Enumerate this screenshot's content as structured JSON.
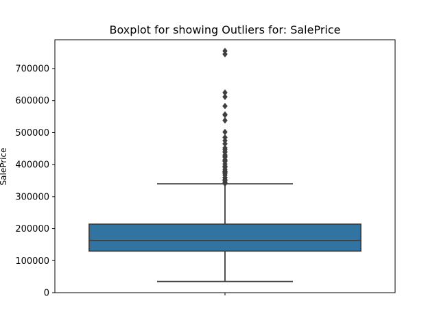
{
  "chart_data": {
    "type": "box",
    "title": "Boxplot for showing Outliers for: SalePrice",
    "xlabel": "",
    "ylabel": "SalePrice",
    "ylim": [
      0,
      790000
    ],
    "yticks": [
      0,
      100000,
      200000,
      300000,
      400000,
      500000,
      600000,
      700000
    ],
    "ytick_labels": [
      "0",
      "100000",
      "200000",
      "300000",
      "400000",
      "500000",
      "600000",
      "700000"
    ],
    "grid": false,
    "colors": {
      "box": "#3274a1",
      "lines": "#3f3f3f"
    },
    "box": {
      "whisker_low": 34900,
      "q1": 129975,
      "median": 163000,
      "q3": 214000,
      "whisker_high": 340000
    },
    "outliers": [
      341000,
      342643,
      345000,
      350000,
      354000,
      359100,
      360000,
      367294,
      372402,
      375000,
      377426,
      378500,
      380000,
      385000,
      392000,
      394432,
      395000,
      402000,
      410000,
      412500,
      415298,
      423000,
      426000,
      430000,
      438780,
      440000,
      446261,
      451950,
      465000,
      475000,
      485000,
      501837,
      538000,
      555000,
      556581,
      582933,
      611657,
      625000,
      745000,
      755000
    ]
  }
}
